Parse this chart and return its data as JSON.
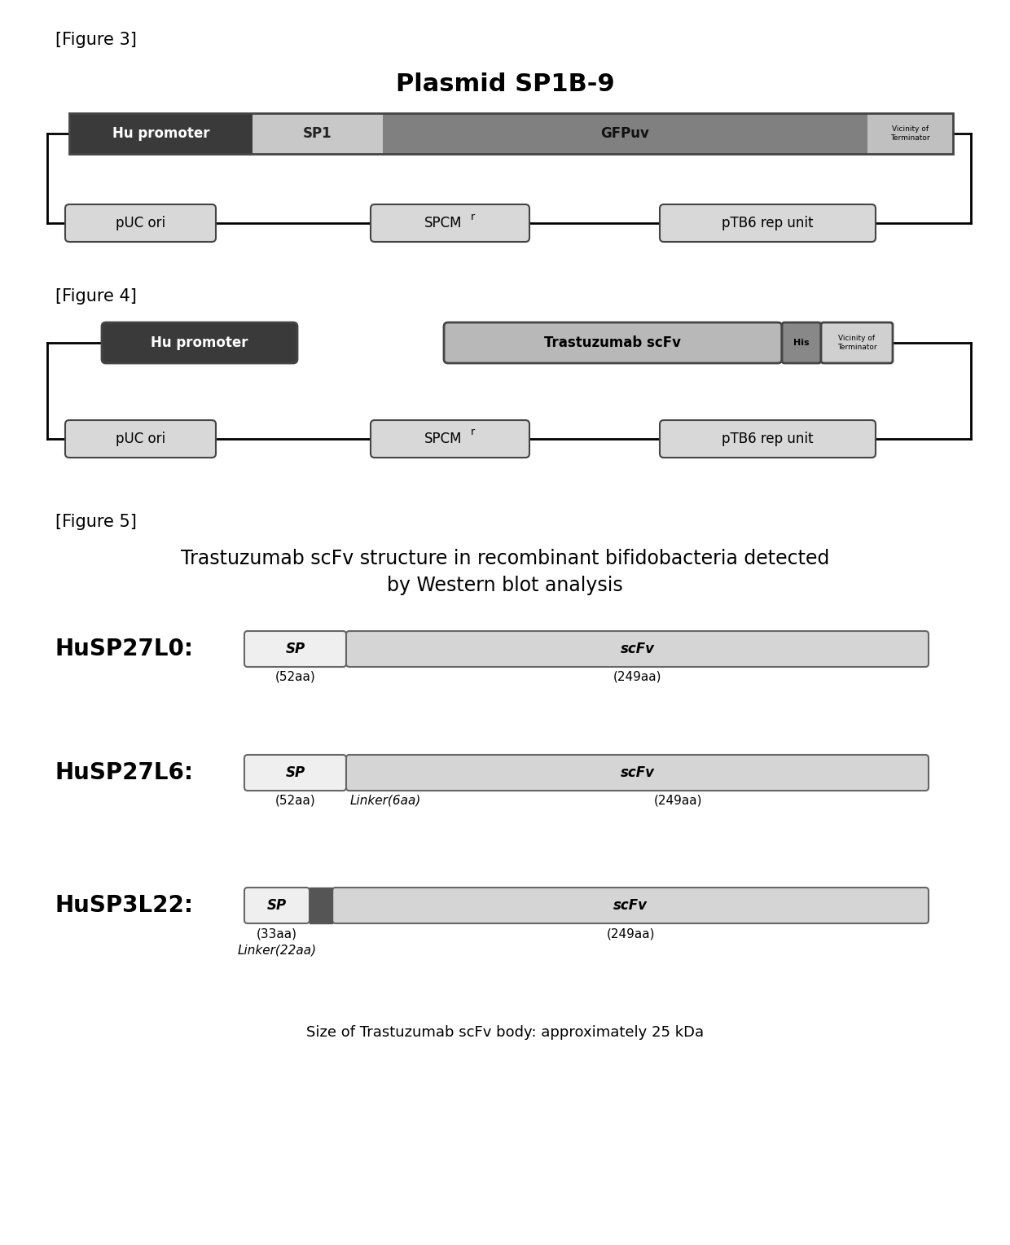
{
  "fig3_title": "Plasmid SP1B-9",
  "fig3_label": "[Figure 3]",
  "fig4_label": "[Figure 4]",
  "fig5_label": "[Figure 5]",
  "fig5_title": "Trastuzumab scFv structure in recombinant bifidobacteria detected\nby Western blot analysis",
  "fig5_footer": "Size of Trastuzumab scFv body: approximately 25 kDa",
  "background_color": "#ffffff"
}
